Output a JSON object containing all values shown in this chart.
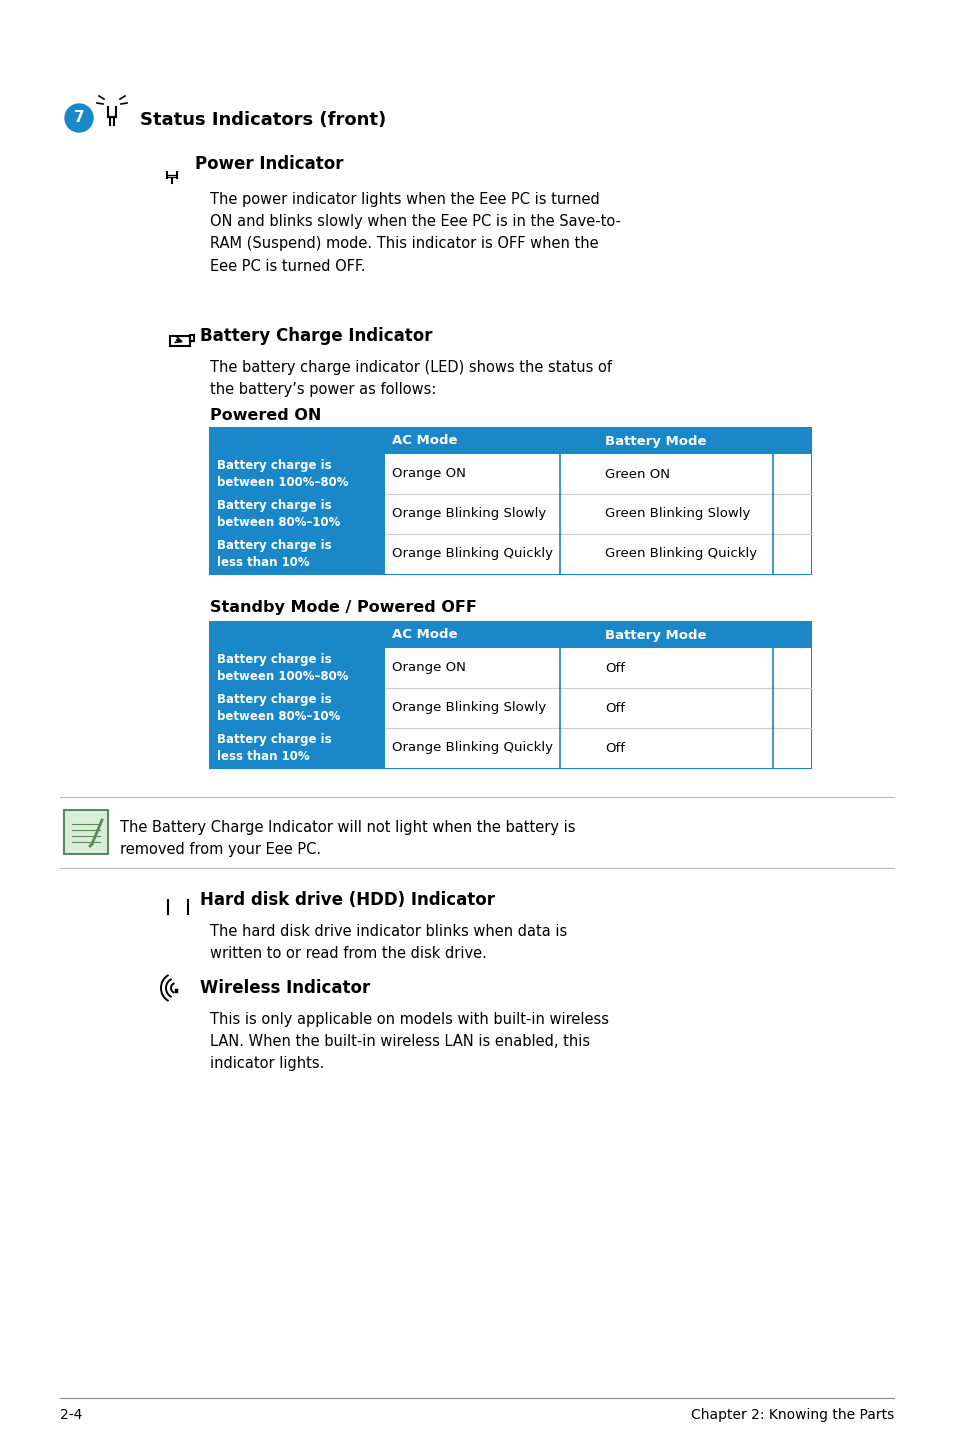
{
  "bg_color": "#ffffff",
  "blue_header": "#1a87c8",
  "white_text": "#ffffff",
  "black_text": "#000000",
  "section_title": "Status Indicators (front)",
  "sub1_title": "Power Indicator",
  "sub1_text": "The power indicator lights when the Eee PC is turned\nON and blinks slowly when the Eee PC is in the Save-to-\nRAM (Suspend) mode. This indicator is OFF when the\nEee PC is turned OFF.",
  "sub2_title": "Battery Charge Indicator",
  "sub2_text": "The battery charge indicator (LED) shows the status of\nthe battery’s power as follows:",
  "powered_on_title": "Powered ON",
  "table1_headers": [
    "",
    "AC Mode",
    "Battery Mode"
  ],
  "table1_rows": [
    [
      "Battery charge is\nbetween 100%–80%",
      "Orange ON",
      "Green ON"
    ],
    [
      "Battery charge is\nbetween 80%–10%",
      "Orange Blinking Slowly",
      "Green Blinking Slowly"
    ],
    [
      "Battery charge is\nless than 10%",
      "Orange Blinking Quickly",
      "Green Blinking Quickly"
    ]
  ],
  "standby_title": "Standby Mode / Powered OFF",
  "table2_headers": [
    "",
    "AC Mode",
    "Battery Mode"
  ],
  "table2_rows": [
    [
      "Battery charge is\nbetween 100%–80%",
      "Orange ON",
      "Off"
    ],
    [
      "Battery charge is\nbetween 80%–10%",
      "Orange Blinking Slowly",
      "Off"
    ],
    [
      "Battery charge is\nless than 10%",
      "Orange Blinking Quickly",
      "Off"
    ]
  ],
  "note_text": "The Battery Charge Indicator will not light when the battery is\nremoved from your Eee PC.",
  "sub3_title": "Hard disk drive (HDD) Indicator",
  "sub3_text": "The hard disk drive indicator blinks when data is\nwritten to or read from the disk drive.",
  "sub4_title": "Wireless Indicator",
  "sub4_text": "This is only applicable on models with built-in wireless\nLAN. When the built-in wireless LAN is enabled, this\nindicator lights.",
  "footer_left": "2-4",
  "footer_right": "Chapter 2: Knowing the Parts"
}
